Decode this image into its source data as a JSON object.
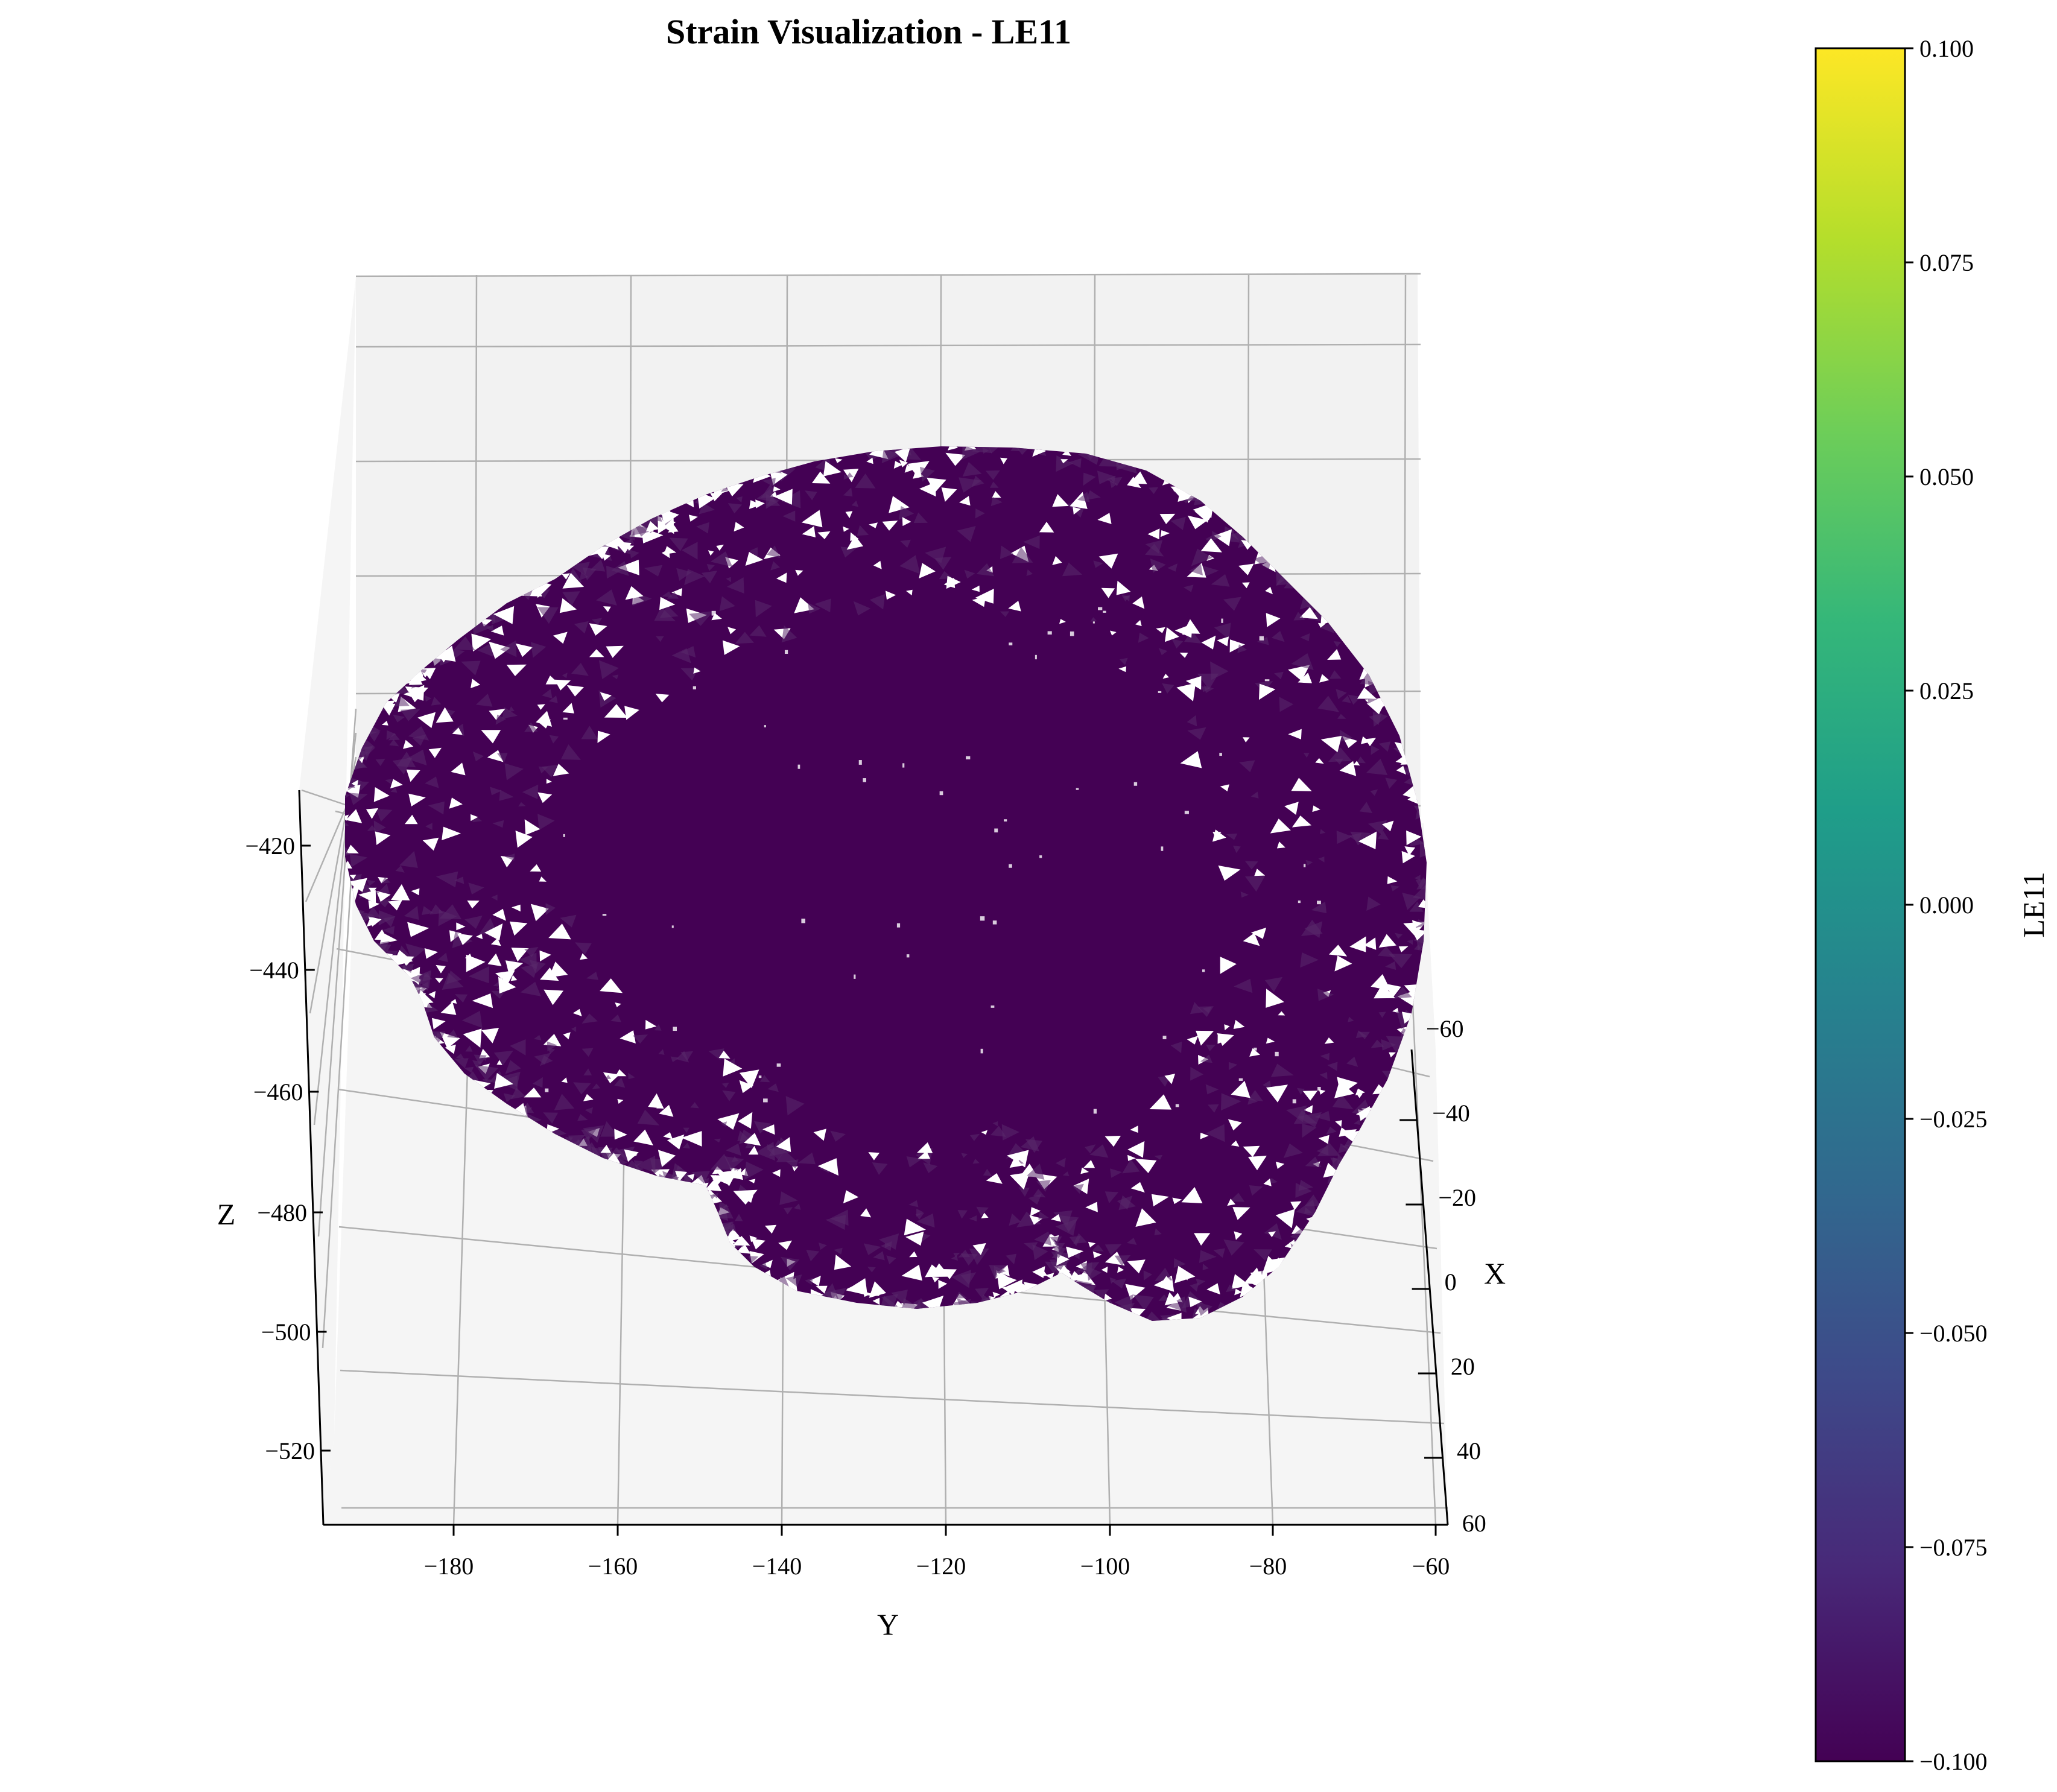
{
  "chart_data": {
    "type": "3d-surface",
    "title": "Strain Visualization - LE11",
    "xlabel": "X",
    "ylabel": "Y",
    "zlabel": "Z",
    "x_ticks": [
      -60,
      -40,
      -20,
      0,
      20,
      40,
      60
    ],
    "y_ticks": [
      -180,
      -160,
      -140,
      -120,
      -100,
      -80,
      -60
    ],
    "z_ticks": [
      -420,
      -440,
      -460,
      -480,
      -500,
      -520
    ],
    "x_tick_labels": [
      "−60",
      "−40",
      "−20",
      "0",
      "20",
      "40",
      "60"
    ],
    "y_tick_labels": [
      "−180",
      "−160",
      "−140",
      "−120",
      "−100",
      "−80",
      "−60"
    ],
    "z_tick_labels": [
      "−420",
      "−440",
      "−460",
      "−480",
      "−500",
      "−520"
    ],
    "grid": true,
    "surface_value": -0.1,
    "surface_color": "#440154",
    "colorbar": {
      "label": "LE11",
      "colormap": "viridis",
      "range": [
        -0.1,
        0.1
      ],
      "ticks": [
        0.1,
        0.075,
        0.05,
        0.025,
        0.0,
        -0.025,
        -0.05,
        -0.075,
        -0.1
      ],
      "tick_labels": [
        "0.100",
        "0.075",
        "0.050",
        "0.025",
        "0.000",
        "−0.025",
        "−0.050",
        "−0.075",
        "−0.100"
      ],
      "colors": [
        "#440154",
        "#482878",
        "#3e4989",
        "#31688e",
        "#26828e",
        "#1f9e89",
        "#35b779",
        "#6ece58",
        "#b5de2b",
        "#fde725"
      ]
    }
  }
}
